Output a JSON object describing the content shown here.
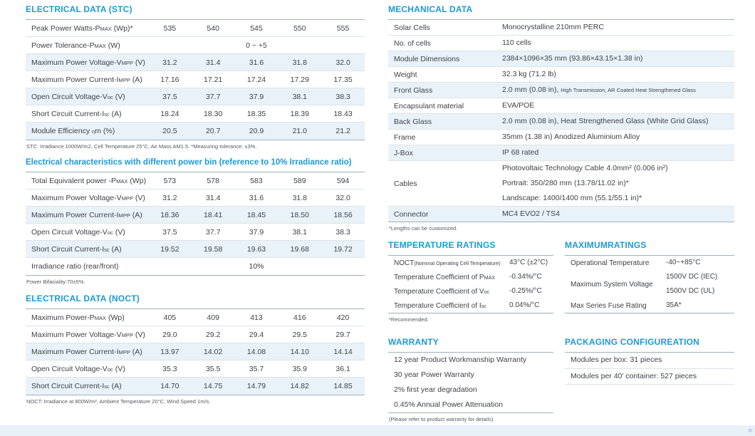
{
  "colors": {
    "accent": "#1b9ad7",
    "row_shade": "#e9f2f9",
    "footer_band": "#e8f1f8"
  },
  "left": {
    "stc": {
      "title": "ELECTRICAL DATA (STC)",
      "rows": [
        {
          "label": "Peak Power Watts-P{MAX} (Wp)*",
          "values": [
            "535",
            "540",
            "545",
            "550",
            "555"
          ]
        },
        {
          "label": "Power Tolerance-P{MAX} (W)",
          "span": "0 ~ +5"
        },
        {
          "label": "Maximum Power Voltage-V{MPP} (V)",
          "values": [
            "31.2",
            "31.4",
            "31.6",
            "31.8",
            "32.0"
          ],
          "shaded": true
        },
        {
          "label": "Maximum Power Current-I{MPP} (A)",
          "values": [
            "17.16",
            "17.21",
            "17.24",
            "17.29",
            "17.35"
          ]
        },
        {
          "label": "Open Circuit Voltage-V{oc} (V)",
          "values": [
            "37.5",
            "37.7",
            "37.9",
            "38.1",
            "38.3"
          ],
          "shaded": true
        },
        {
          "label": "Short Circuit Current-I{sc} (A)",
          "values": [
            "18.24",
            "18.30",
            "18.35",
            "18.39",
            "18.43"
          ]
        },
        {
          "label": "Module Efficiency {η}m (%)",
          "values": [
            "20.5",
            "20.7",
            "20.9",
            "21.0",
            "21.2"
          ],
          "shaded": true
        }
      ],
      "footnote": "STC: Irradiance 1000W/m2, Cell Temperature 25°C, Air Mass AM1.5.   *Measuring tolerance: ±3%."
    },
    "powerbin": {
      "title": "Electrical characteristics with different power bin (reference to 10% Irradiance ratio)",
      "rows": [
        {
          "label": "Total Equivalent power -P{MAX} (Wp)",
          "values": [
            "573",
            "578",
            "583",
            "589",
            "594"
          ]
        },
        {
          "label": "Maximum Power Voltage-V{MPP}  (V)",
          "values": [
            "31.2",
            "31.4",
            "31.6",
            "31.8",
            "32.0"
          ]
        },
        {
          "label": "Maximum Power Current-I{MPP} (A)",
          "values": [
            "18.36",
            "18.41",
            "18.45",
            "18.50",
            "18.56"
          ],
          "shaded": true
        },
        {
          "label": "Open Circuit Voltage-V{oc}  (V)",
          "values": [
            "37.5",
            "37.7",
            "37.9",
            "38.1",
            "38.3"
          ]
        },
        {
          "label": "Short Circuit Current-I{sc} (A)",
          "values": [
            "19.52",
            "19.58",
            "19.63",
            "19.68",
            "19.72"
          ],
          "shaded": true
        },
        {
          "label": "Irradiance ratio (rear/front)",
          "span": "10%"
        }
      ],
      "footnote": "Power Bifaciality:70±5%."
    },
    "noct": {
      "title": "ELECTRICAL DATA (NOCT)",
      "rows": [
        {
          "label": "Maximum Power-P{MAX} (Wp)",
          "values": [
            "405",
            "409",
            "413",
            "416",
            "420"
          ]
        },
        {
          "label": "Maximum Power Voltage-V{MPP} (V)",
          "values": [
            "29.0",
            "29.2",
            "29.4",
            "29.5",
            "29.7"
          ]
        },
        {
          "label": "Maximum Power Current-I{MPP} (A)",
          "values": [
            "13.97",
            "14.02",
            "14.08",
            "14.10",
            "14.14"
          ],
          "shaded": true
        },
        {
          "label": "Open Circuit Voltage-V{oc} (V)",
          "values": [
            "35.3",
            "35.5",
            "35.7",
            "35.9",
            "36.1"
          ]
        },
        {
          "label": "Short Circuit Current-I{sc} (A)",
          "values": [
            "14.70",
            "14.75",
            "14.79",
            "14.82",
            "14.85"
          ],
          "shaded": true
        }
      ],
      "footnote": "NOCT: Irradiance at 800W/m², Ambient Temperature 20°C, Wind Speed 1m/s."
    }
  },
  "right": {
    "mechanical": {
      "title": "MECHANICAL DATA",
      "rows": [
        {
          "label": "Solar Cells",
          "value": "Monocrystalline 210mm PERC"
        },
        {
          "label": "No. of cells",
          "value": "110 cells"
        },
        {
          "label": "Module Dimensions",
          "value": "2384×1096×35 mm (93.86×43.15×1.38 in)",
          "shaded": true
        },
        {
          "label": "Weight",
          "value": "32.3 kg (71.2 lb)"
        },
        {
          "label": "Front Glass",
          "value": "2.0 mm (0.08 in),",
          "value_small": "High Transmission, AR Coated Heat Strengthened Glass",
          "shaded": true
        },
        {
          "label": "Encapsulant material",
          "value": "EVA/POE"
        },
        {
          "label": "Back Glass",
          "value": "2.0 mm (0.08 in), Heat Strengthened Glass (White Grid Glass)",
          "shaded": true
        },
        {
          "label": "Frame",
          "value": "35mm (1.38 in)  Anodized  Aluminium Alloy"
        },
        {
          "label": "J-Box",
          "value": "IP 68 rated",
          "shaded": true
        },
        {
          "label": "Cables",
          "lines": [
            "Photovoltaic Technology Cable 4.0mm² (0.006 in²)",
            "Portrait: 350/280 mm (13.78/11.02 in)*",
            "Landscape: 1400/1400 mm (55.1/55.1 in)*"
          ]
        },
        {
          "label": "Connector",
          "value": "MC4 EVO2 / TS4",
          "shaded": true
        }
      ],
      "footnote": "*Lengths can be customized."
    },
    "temperature": {
      "title": "TEMPERATURE RATINGS",
      "rows": [
        {
          "label": "NOCT",
          "label_small": "(Nominal Operating Cell Temperature)",
          "value": "43°C (±2°C)"
        },
        {
          "label": "Temperature Coefficient of P{MAX}",
          "value": "-0.34%/°C"
        },
        {
          "label": "Temperature Coefficient of V{oc}",
          "value": "-0.25%/°C"
        },
        {
          "label": "Temperature Coefficient of I{sc}",
          "value": "0.04%/°C"
        }
      ],
      "footnote": "*Recommended."
    },
    "maximum": {
      "title": "MAXIMUMRATINGS",
      "rows": [
        {
          "label": "Operational Temperature",
          "value": "-40~+85°C"
        },
        {
          "label": "Maximum System Voltage",
          "lines": [
            "1500V DC (IEC)",
            "1500V DC (UL)"
          ]
        },
        {
          "label": "Max Series Fuse Rating",
          "value": "35A*"
        }
      ]
    },
    "warranty": {
      "title": "WARRANTY",
      "items": [
        "12 year Product Workmanship Warranty",
        "30 year Power Warranty",
        "2% first year degradation",
        "0.45% Annual Power Attenuation"
      ],
      "footnote": "(Please refer to product warranty for details)"
    },
    "packaging": {
      "title": "PACKAGING CONFIGUREATION",
      "items": [
        "Modules per box: 31 pieces",
        "Modules per 40' container: 527 pieces"
      ]
    }
  },
  "footer": {
    "mark": "≋"
  }
}
